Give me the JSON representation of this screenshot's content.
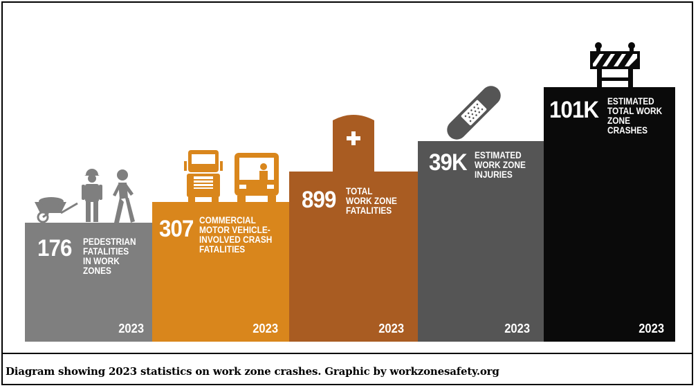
{
  "panels": [
    {
      "value": "176",
      "description": "PEDESTRIAN\nFATALITIES\nIN WORK\nZONES",
      "year": "2023",
      "color": "#7f7f7f"
    },
    {
      "value": "307",
      "description": "COMMERCIAL\nMOTOR VEHICLE-\nINVOLVED CRASH\nFATALITIES",
      "year": "2023",
      "color": "#d9861c"
    },
    {
      "value": "899",
      "description": "TOTAL\nWORK ZONE\nFATALITIES",
      "year": "2023",
      "color": "#a95c22"
    },
    {
      "value": "39K",
      "description": "ESTIMATED\nWORK ZONE\nINJURIES",
      "year": "2023",
      "color": "#555555"
    },
    {
      "value": "101K",
      "description": "ESTIMATED\nTOTAL WORK\nZONE\nCRASHES",
      "year": "2023",
      "color": "#0a0a0a"
    }
  ],
  "icons": [
    "wheelbarrow-icon",
    "worker-hardhat-icon",
    "walking-pedestrian-icon",
    "truck-icon",
    "bus-icon",
    "tombstone-icon",
    "bandage-icon",
    "barricade-icon"
  ],
  "caption": "Diagram showing 2023 statistics on work zone crashes. Graphic by workzonesafety.org"
}
